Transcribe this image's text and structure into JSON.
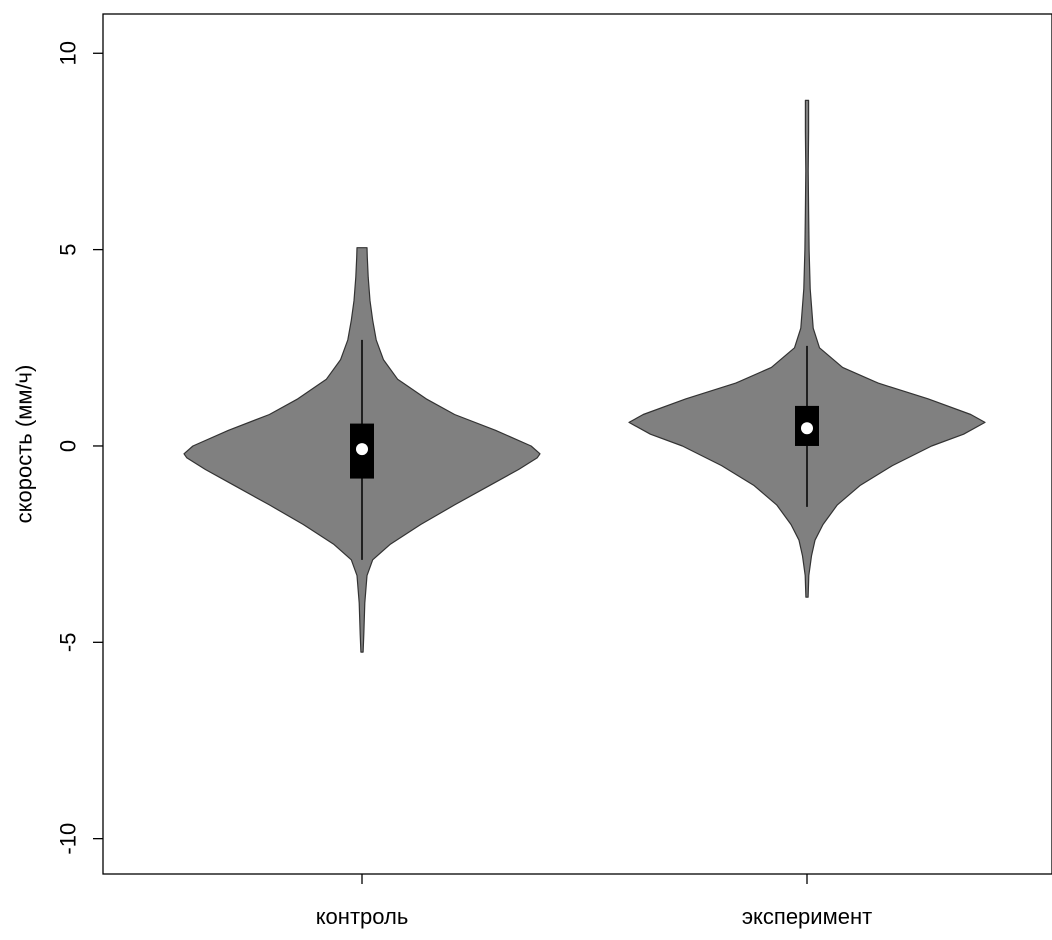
{
  "chart_data": {
    "type": "violin",
    "ylabel": "скорость (мм/ч)",
    "xlabel": "",
    "title": "",
    "ylim": [
      -10.9,
      11.0
    ],
    "yticks": [
      -10,
      -5,
      0,
      5,
      10
    ],
    "ytick_labels": [
      "-10",
      "-5",
      "0",
      "5",
      "10"
    ],
    "categories": [
      "контроль",
      "эксперимент"
    ],
    "grid": false,
    "colors": {
      "violin_fill": "#808080",
      "violin_stroke": "#333333",
      "box": "#000000",
      "median": "#ffffff"
    },
    "groups": [
      {
        "name": "контроль",
        "min": -5.25,
        "max": 5.05,
        "whisker_low": -2.9,
        "whisker_high": 2.7,
        "q1": -0.83,
        "q3": 0.57,
        "median": -0.08,
        "density_profile": [
          [
            -5.25,
            0.006
          ],
          [
            -4.8,
            0.01
          ],
          [
            -4.0,
            0.016
          ],
          [
            -3.3,
            0.028
          ],
          [
            -2.9,
            0.06
          ],
          [
            -2.5,
            0.16
          ],
          [
            -2.0,
            0.33
          ],
          [
            -1.5,
            0.52
          ],
          [
            -1.0,
            0.72
          ],
          [
            -0.6,
            0.88
          ],
          [
            -0.3,
            0.985
          ],
          [
            -0.2,
            1.0
          ],
          [
            0.0,
            0.95
          ],
          [
            0.4,
            0.75
          ],
          [
            0.8,
            0.52
          ],
          [
            1.2,
            0.36
          ],
          [
            1.7,
            0.2
          ],
          [
            2.2,
            0.12
          ],
          [
            2.7,
            0.08
          ],
          [
            3.2,
            0.06
          ],
          [
            3.7,
            0.045
          ],
          [
            4.3,
            0.035
          ],
          [
            4.8,
            0.03
          ],
          [
            5.05,
            0.028
          ]
        ]
      },
      {
        "name": "эксперимент",
        "min": -3.85,
        "max": 8.8,
        "whisker_low": -1.55,
        "whisker_high": 2.55,
        "q1": 0.0,
        "q3": 1.02,
        "median": 0.45,
        "density_profile": [
          [
            -3.85,
            0.006
          ],
          [
            -3.3,
            0.01
          ],
          [
            -2.8,
            0.025
          ],
          [
            -2.4,
            0.045
          ],
          [
            -2.0,
            0.09
          ],
          [
            -1.5,
            0.17
          ],
          [
            -1.0,
            0.3
          ],
          [
            -0.5,
            0.48
          ],
          [
            0.0,
            0.7
          ],
          [
            0.3,
            0.88
          ],
          [
            0.6,
            1.0
          ],
          [
            0.8,
            0.92
          ],
          [
            1.2,
            0.68
          ],
          [
            1.6,
            0.4
          ],
          [
            2.0,
            0.2
          ],
          [
            2.5,
            0.07
          ],
          [
            3.0,
            0.035
          ],
          [
            4.0,
            0.018
          ],
          [
            5.0,
            0.012
          ],
          [
            6.0,
            0.009
          ],
          [
            7.0,
            0.007
          ],
          [
            8.0,
            0.009
          ],
          [
            8.8,
            0.009
          ]
        ]
      }
    ]
  }
}
